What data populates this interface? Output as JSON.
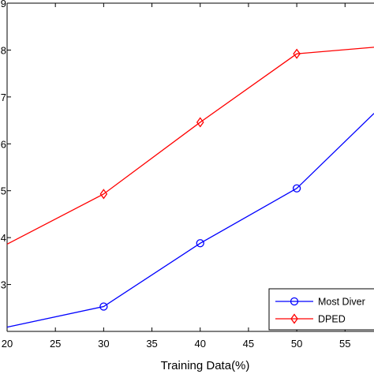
{
  "chart_data": {
    "type": "line",
    "xlabel": "Training Data(%)",
    "ylabel": "",
    "xlim": [
      20,
      58
    ],
    "ylim": [
      0.2,
      0.9
    ],
    "x_ticks": [
      20,
      25,
      30,
      35,
      40,
      45,
      50,
      55
    ],
    "x_tick_labels": [
      "20",
      "25",
      "30",
      "35",
      "40",
      "45",
      "50",
      "55"
    ],
    "y_ticks": [
      0.3,
      0.4,
      0.5,
      0.6,
      0.7,
      0.8,
      0.9
    ],
    "y_tick_labels": [
      "3",
      "4",
      "5",
      "6",
      "7",
      "8",
      "9"
    ],
    "grid": false,
    "legend_position": "bottom-right",
    "series": [
      {
        "name": "Most Diver",
        "color": "#0000ff",
        "marker": "circle",
        "x": [
          20,
          30,
          40,
          50,
          58
        ],
        "y": [
          0.209,
          0.253,
          0.388,
          0.505,
          0.665
        ]
      },
      {
        "name": "DPED",
        "color": "#ff0000",
        "marker": "diamond",
        "x": [
          20,
          30,
          40,
          50,
          58
        ],
        "y": [
          0.386,
          0.493,
          0.646,
          0.792,
          0.806
        ]
      }
    ]
  }
}
